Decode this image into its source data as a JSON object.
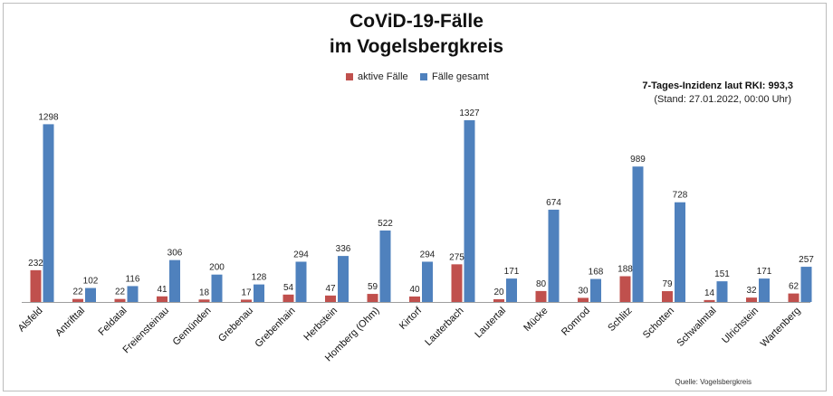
{
  "colors": {
    "aktive": "#c0504d",
    "gesamt": "#4f81bd"
  },
  "header": {
    "title_line_1": "CoViD-19-Fälle",
    "title_line_2": "im Vogelsbergkreis"
  },
  "legend": {
    "aktive_label": "aktive Fälle",
    "gesamt_label": "Fälle gesamt"
  },
  "info": {
    "incidence": "7-Tages-Inzidenz laut RKI: 993,3",
    "status": "(Stand: 27.01.2022, 00:00 Uhr)"
  },
  "source": "Quelle: Vogelsbergkreis",
  "chart_data": {
    "type": "bar",
    "categories": [
      "Alsfeld",
      "Antrifttal",
      "Feldatal",
      "Freiensteinau",
      "Gemünden",
      "Grebenau",
      "Grebenhain",
      "Herbstein",
      "Homberg (Ohm)",
      "Kirtorf",
      "Lauterbach",
      "Lautertal",
      "Mücke",
      "Romrod",
      "Schlitz",
      "Schotten",
      "Schwalmtal",
      "Ulrichstein",
      "Wartenberg"
    ],
    "series": [
      {
        "name": "aktive Fälle",
        "values": [
          232,
          22,
          22,
          41,
          18,
          17,
          54,
          47,
          59,
          40,
          275,
          20,
          80,
          30,
          188,
          79,
          14,
          32,
          62
        ]
      },
      {
        "name": "Fälle gesamt",
        "values": [
          1298,
          102,
          116,
          306,
          200,
          128,
          294,
          336,
          522,
          294,
          1327,
          171,
          674,
          168,
          989,
          728,
          151,
          171,
          257
        ]
      }
    ],
    "title": "CoViD-19-Fälle im Vogelsbergkreis",
    "xlabel": "",
    "ylabel": "",
    "ylim": [
      0,
      1327
    ],
    "grid": false,
    "legend_position": "top-center"
  }
}
